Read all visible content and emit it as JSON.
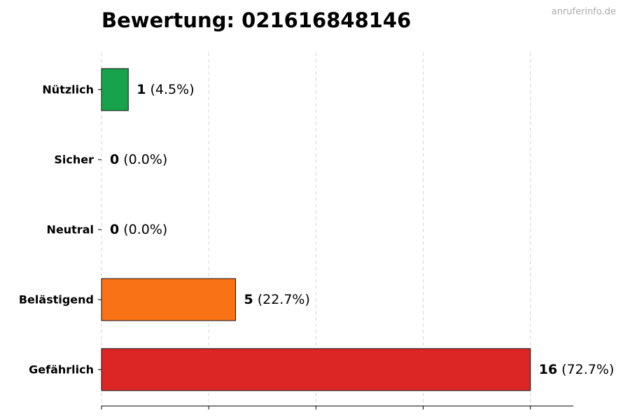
{
  "chart_data": {
    "type": "barh",
    "title": "Bewertung: 021616848146",
    "watermark": "anruferinfo.de",
    "categories": [
      "Nützlich",
      "Sicher",
      "Neutral",
      "Belästigend",
      "Gefährlich"
    ],
    "values": [
      1,
      0,
      0,
      5,
      16
    ],
    "shares": [
      "(4.5%)",
      "(0.0%)",
      "(0.0%)",
      "(22.7%)",
      "(72.7%)"
    ],
    "colors": [
      "#16a34a",
      "#2563eb",
      "#9ca3af",
      "#f97316",
      "#dc2626"
    ],
    "xlim": [
      0,
      17.6
    ],
    "xticks": [
      0,
      4,
      8,
      12,
      16
    ],
    "grid": true
  }
}
